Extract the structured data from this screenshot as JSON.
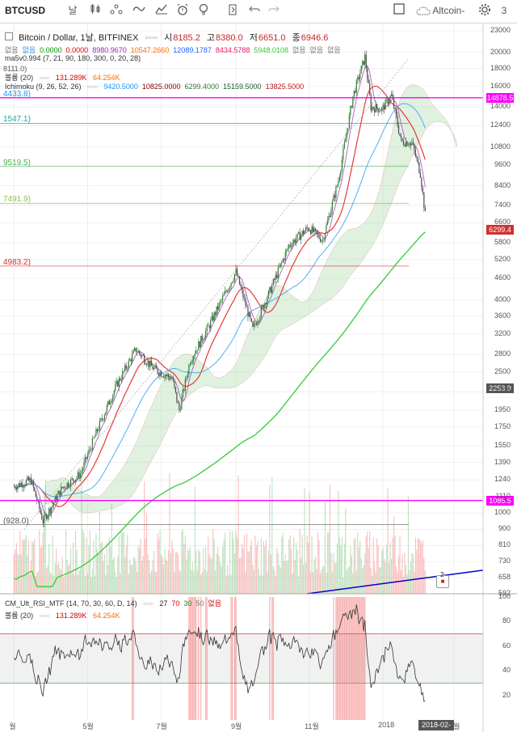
{
  "toolbar": {
    "symbol": "BTCUSD",
    "interval": "날",
    "compare_label": "Altcoin-",
    "extra": "3"
  },
  "legend": {
    "title": "Bitcoin / Dollar, 1날, BITFINEX",
    "open_label": "시",
    "open": "8185.2",
    "high_label": "고",
    "high": "8380.0",
    "low_label": "저",
    "low": "6651.0",
    "close_label": "종",
    "close": "6946.6",
    "row1": [
      "없음",
      "없음",
      "0.0000",
      "0.0000",
      "8980.9670",
      "10547.2660",
      "12089.1787",
      "8434.5788",
      "5948.0108",
      "없음",
      "없음",
      "없음"
    ],
    "row1_colors": [
      "#777",
      "#2196f3",
      "#009900",
      "#d50000",
      "#9c27b0",
      "#ff6d00",
      "#2962ff",
      "#e91e63",
      "#33cc33",
      "#777",
      "#777",
      "#777"
    ],
    "ma_label": "ma5v0.994 (7, 21, 90, 180, 300, 0, 20, 28)",
    "fib_top_label": "8111.0)",
    "volume_label": "볼륨 (20)",
    "volume_v1": "131.289K",
    "volume_v2": "64.254K",
    "ichimoku_label": "Ichimoku (9, 26, 52, 26)",
    "ichimoku_vals": [
      "9420.5000",
      "10825.0000",
      "6299.4000",
      "15159.5000",
      "13825.5000"
    ],
    "ichimoku_colors": [
      "#2196f3",
      "#8b0000",
      "#2e7d32",
      "#1b5e20",
      "#b71c1c"
    ]
  },
  "rsi_legend": {
    "label": "CM_Ult_RSI_MTF (14, 70, 30, 60, D, 14)",
    "vals": [
      "27",
      "70",
      "30",
      "50",
      "없음"
    ],
    "val_colors": [
      "#222",
      "#d50000",
      "#2e7d32",
      "#777",
      "#d50000"
    ],
    "volume_label": "볼륨 (20)",
    "volume_v1": "131.289K",
    "volume_v2": "64.254K"
  },
  "fib_levels": [
    {
      "label": "4433.8)",
      "price": 14878.5,
      "color": "#2196f3"
    },
    {
      "label": "1547.1)",
      "price": 12600,
      "color": "#26a69a"
    },
    {
      "label": "9519.5)",
      "price": 9519.5,
      "color": "#4caf50"
    },
    {
      "label": "7491.9)",
      "price": 7491.9,
      "color": "#8bc34a"
    },
    {
      "label": "4983.2)",
      "price": 4983.2,
      "color": "#d32f2f"
    },
    {
      "label": "(928.0)",
      "price": 928.0,
      "color": "#555"
    }
  ],
  "price_boxes": [
    {
      "text": "14878.5",
      "price": 14878.5,
      "color": "#ff00ff"
    },
    {
      "text": "6299.4",
      "price": 6299.4,
      "color": "#d32f2f"
    },
    {
      "text": "2253.9",
      "price": 2253.9,
      "color": "#555"
    },
    {
      "text": "1085.5",
      "price": 1085.5,
      "color": "#ff00ff"
    }
  ],
  "rsi_ticks": [
    "100",
    "80",
    "60",
    "40",
    "20"
  ],
  "date_box": "2018-02-05",
  "badge": "2",
  "chart_data": {
    "type": "candlestick",
    "title": "Bitcoin / Dollar, 1날, BITFINEX",
    "y_scale": "log",
    "ylim": [
      592,
      23000
    ],
    "y_ticks": [
      23000,
      20000,
      18000,
      16000,
      14000,
      12400,
      10800,
      9600,
      8400,
      7400,
      6600,
      5800,
      5200,
      4600,
      4000,
      3600,
      3200,
      2800,
      2500,
      2200,
      1950,
      1750,
      1550,
      1390,
      1240,
      1110,
      1000,
      900,
      810,
      730,
      658,
      592
    ],
    "x_ticks": [
      "월",
      "5월",
      "7월",
      "9월",
      "11월",
      "2018",
      "3월"
    ],
    "x_months": [
      "2017-03",
      "2017-05",
      "2017-07",
      "2017-09",
      "2017-11",
      "2018-01",
      "2018-03"
    ],
    "close_series": [
      {
        "date": "2017-03-01",
        "close": 1190
      },
      {
        "date": "2017-03-15",
        "close": 1240
      },
      {
        "date": "2017-03-25",
        "close": 950
      },
      {
        "date": "2017-04-10",
        "close": 1180
      },
      {
        "date": "2017-04-25",
        "close": 1290
      },
      {
        "date": "2017-05-10",
        "close": 1750
      },
      {
        "date": "2017-05-25",
        "close": 2300
      },
      {
        "date": "2017-06-10",
        "close": 2900
      },
      {
        "date": "2017-06-25",
        "close": 2550
      },
      {
        "date": "2017-07-10",
        "close": 2400
      },
      {
        "date": "2017-07-16",
        "close": 1950
      },
      {
        "date": "2017-07-25",
        "close": 2700
      },
      {
        "date": "2017-08-10",
        "close": 3400
      },
      {
        "date": "2017-08-25",
        "close": 4300
      },
      {
        "date": "2017-09-01",
        "close": 4800
      },
      {
        "date": "2017-09-15",
        "close": 3300
      },
      {
        "date": "2017-09-30",
        "close": 4300
      },
      {
        "date": "2017-10-15",
        "close": 5700
      },
      {
        "date": "2017-10-31",
        "close": 6400
      },
      {
        "date": "2017-11-12",
        "close": 5900
      },
      {
        "date": "2017-11-25",
        "close": 8700
      },
      {
        "date": "2017-12-07",
        "close": 15000
      },
      {
        "date": "2017-12-17",
        "close": 19400
      },
      {
        "date": "2017-12-22",
        "close": 14000
      },
      {
        "date": "2017-12-31",
        "close": 13800
      },
      {
        "date": "2018-01-08",
        "close": 15100
      },
      {
        "date": "2018-01-16",
        "close": 11200
      },
      {
        "date": "2018-01-25",
        "close": 11100
      },
      {
        "date": "2018-02-01",
        "close": 9100
      },
      {
        "date": "2018-02-05",
        "close": 6946.6
      }
    ]
  }
}
